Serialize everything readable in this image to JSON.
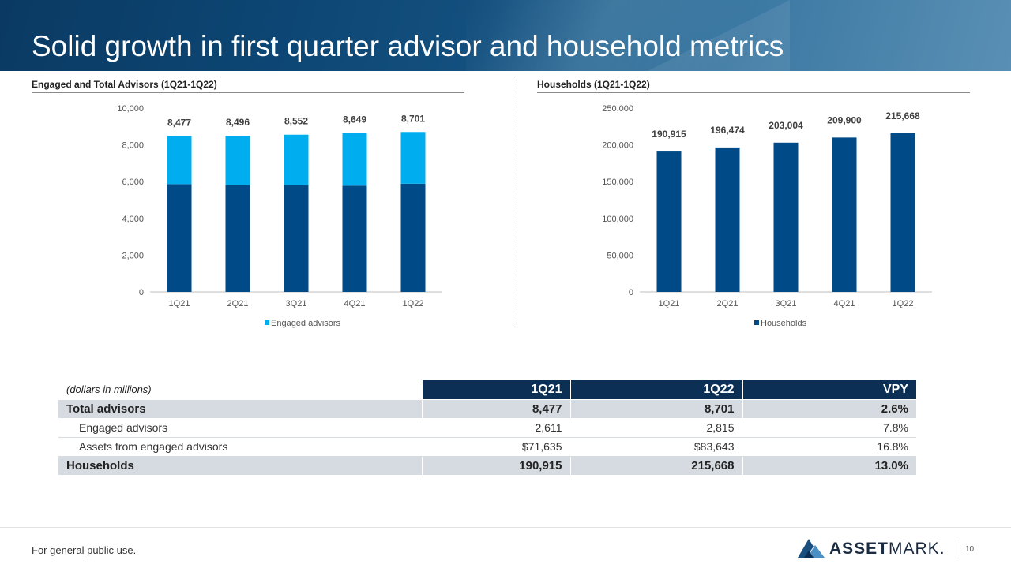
{
  "title": "Solid growth in first quarter advisor and household metrics",
  "chart_data": [
    {
      "type": "bar",
      "title": "Engaged and Total Advisors (1Q21-1Q22)",
      "categories": [
        "1Q21",
        "2Q21",
        "3Q21",
        "4Q21",
        "1Q22"
      ],
      "stacked": true,
      "series": [
        {
          "name": "",
          "values": [
            5866,
            5820,
            5810,
            5780,
            5886
          ],
          "color": "#004b87"
        },
        {
          "name": "Engaged advisors",
          "values": [
            2611,
            2676,
            2742,
            2869,
            2815
          ],
          "color": "#00aeef"
        }
      ],
      "totals": [
        8477,
        8496,
        8552,
        8649,
        8701
      ],
      "total_labels": [
        "8,477",
        "8,496",
        "8,552",
        "8,649",
        "8,701"
      ],
      "ylim": [
        0,
        10000
      ],
      "yticks": [
        0,
        2000,
        4000,
        6000,
        8000,
        10000
      ],
      "ytick_labels": [
        "0",
        "2,000",
        "4,000",
        "6,000",
        "8,000",
        "10,000"
      ],
      "legend": "bottom",
      "legend_label": "Engaged advisors",
      "legend_color": "#00aeef",
      "grid": false
    },
    {
      "type": "bar",
      "title": "Households (1Q21-1Q22)",
      "categories": [
        "1Q21",
        "2Q21",
        "3Q21",
        "4Q21",
        "1Q22"
      ],
      "series": [
        {
          "name": "Households",
          "values": [
            190915,
            196474,
            203004,
            209900,
            215668
          ],
          "color": "#004b87"
        }
      ],
      "value_labels": [
        "190,915",
        "196,474",
        "203,004",
        "209,900",
        "215,668"
      ],
      "ylim": [
        0,
        250000
      ],
      "yticks": [
        0,
        50000,
        100000,
        150000,
        200000,
        250000
      ],
      "ytick_labels": [
        "0",
        "50,000",
        "100,000",
        "150,000",
        "200,000",
        "250,000"
      ],
      "legend": "bottom",
      "legend_label": "Households",
      "legend_color": "#004b87",
      "grid": false
    }
  ],
  "table": {
    "caption": "(dollars in millions)",
    "columns": [
      "1Q21",
      "1Q22",
      "VPY"
    ],
    "rows": [
      {
        "label": "Total advisors",
        "v1": "8,477",
        "v2": "8,701",
        "vpy": "2.6%"
      },
      {
        "label": "Engaged advisors",
        "v1": "2,611",
        "v2": "2,815",
        "vpy": "7.8%"
      },
      {
        "label": "Assets from engaged advisors",
        "v1": "$71,635",
        "v2": "$83,643",
        "vpy": "16.8%"
      },
      {
        "label": "Households",
        "v1": "190,915",
        "v2": "215,668",
        "vpy": "13.0%"
      }
    ]
  },
  "footer": {
    "note": "For general public use.",
    "page_number": "10",
    "logo_bold": "ASSET",
    "logo_rest": "MARK."
  }
}
